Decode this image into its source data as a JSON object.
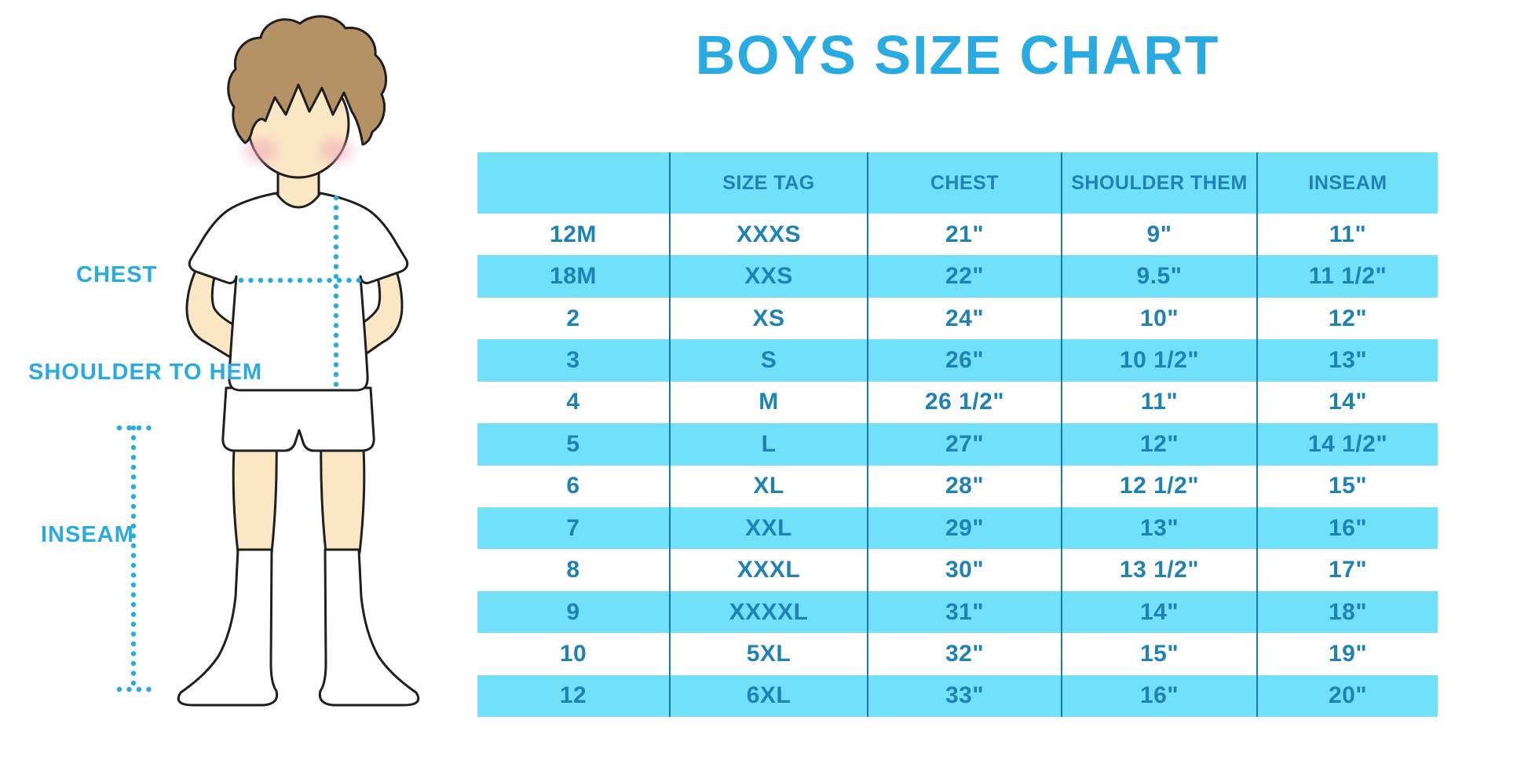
{
  "title": "BOYS SIZE CHART",
  "diagram": {
    "labels": {
      "chest": "CHEST",
      "shoulder_to_hem": "SHOULDER TO HEM",
      "inseam": "INSEAM"
    }
  },
  "table": {
    "columns": [
      "",
      "SIZE TAG",
      "CHEST",
      "SHOULDER THEM",
      "INSEAM"
    ],
    "rows": [
      [
        "12M",
        "XXXS",
        "21\"",
        "9\"",
        "11\""
      ],
      [
        "18M",
        "XXS",
        "22\"",
        "9.5\"",
        "11 1/2\""
      ],
      [
        "2",
        "XS",
        "24\"",
        "10\"",
        "12\""
      ],
      [
        "3",
        "S",
        "26\"",
        "10 1/2\"",
        "13\""
      ],
      [
        "4",
        "M",
        "26 1/2\"",
        "11\"",
        "14\""
      ],
      [
        "5",
        "L",
        "27\"",
        "12\"",
        "14 1/2\""
      ],
      [
        "6",
        "XL",
        "28\"",
        "12 1/2\"",
        "15\""
      ],
      [
        "7",
        "XXL",
        "29\"",
        "13\"",
        "16\""
      ],
      [
        "8",
        "XXXL",
        "30\"",
        "13 1/2\"",
        "17\""
      ],
      [
        "9",
        "XXXXL",
        "31\"",
        "14\"",
        "18\""
      ],
      [
        "10",
        "5XL",
        "32\"",
        "15\"",
        "19\""
      ],
      [
        "12",
        "6XL",
        "33\"",
        "16\"",
        "20\""
      ]
    ]
  },
  "colors": {
    "accent": "#29ABE2",
    "row_fill": "#70E1F8",
    "cell_text": "#1F82B5",
    "grid_line": "#1878B4",
    "skin": "#FBE7C4",
    "hair": "#B59166"
  }
}
